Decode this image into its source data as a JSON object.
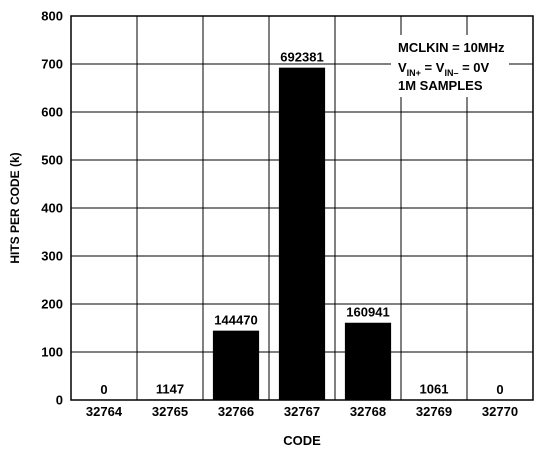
{
  "chart_data": {
    "type": "bar",
    "categories": [
      "32764",
      "32765",
      "32766",
      "32767",
      "32768",
      "32769",
      "32770"
    ],
    "values": [
      0,
      1147,
      144470,
      692381,
      160941,
      1061,
      0
    ],
    "value_labels": [
      "0",
      "1147",
      "144470",
      "692381",
      "160941",
      "1061",
      "0"
    ],
    "ylabel": "HITS PER CODE (k)",
    "xlabel": "CODE",
    "ylim": [
      0,
      800000
    ],
    "yticks": [
      0,
      100,
      200,
      300,
      400,
      500,
      600,
      700,
      800
    ],
    "y_display_divisor": 1000,
    "grid": true,
    "bar_color": "#000000",
    "annotation": {
      "line1": "MCLKIN = 10MHz",
      "line2_v": "V",
      "line2_sub1": "IN+",
      "line2_eq": " = V",
      "line2_sub2": "IN–",
      "line2_rest": " = 0V",
      "line3": "1M SAMPLES"
    }
  }
}
